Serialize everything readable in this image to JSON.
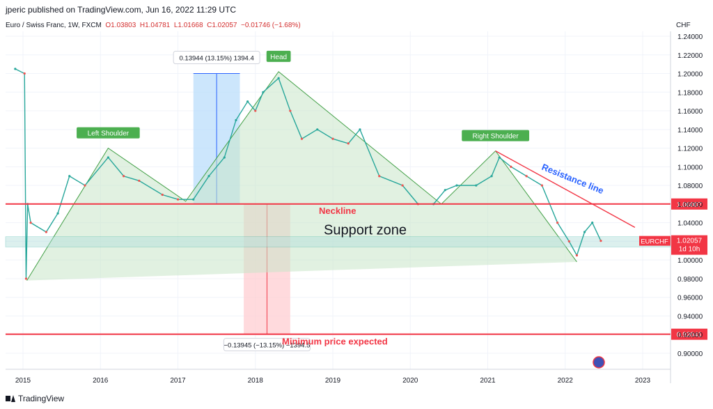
{
  "header": {
    "publish_line": "jperic published on TradingView.com, Jun 16, 2022 11:29 UTC"
  },
  "legend": {
    "symbol": "Euro / Swiss Franc, 1W, FXCM",
    "o": "O1.03803",
    "h": "H1.04781",
    "l": "L1.01668",
    "c": "C1.02057",
    "change": "−0.01746 (−1.68%)"
  },
  "footer": {
    "brand": "TradingView"
  },
  "colors": {
    "up": "#26a69a",
    "down": "#ef5350",
    "neckline": "#f23645",
    "pattern_fill": "#c8e6c9",
    "pattern_line": "#43a047",
    "resistance": "#f23645",
    "support_zone": "#b2dfdb",
    "measure_up": "#bbdefb",
    "measure_down": "#ffcdd2",
    "label_bg": "#4caf50"
  },
  "chart_data": {
    "type": "line",
    "instrument": "EURCHF",
    "timeframe": "1W",
    "y_unit": "CHF",
    "ylim": [
      0.88,
      1.25
    ],
    "xlim": [
      2014.9,
      2023.3
    ],
    "y_ticks": [
      "1.24000",
      "1.22000",
      "1.20000",
      "1.18000",
      "1.16000",
      "1.14000",
      "1.12000",
      "1.10000",
      "1.08000",
      "1.06000",
      "1.04000",
      "1.02000",
      "1.00000",
      "0.98000",
      "0.96000",
      "0.94000",
      "0.92000",
      "0.90000"
    ],
    "x_ticks": [
      "2015",
      "2016",
      "2017",
      "2018",
      "2019",
      "2020",
      "2021",
      "2022",
      "2023"
    ],
    "grid": true,
    "series": [
      {
        "x": [
          2014.9,
          2015.02,
          2015.04,
          2015.06,
          2015.1,
          2015.3,
          2015.45,
          2015.6,
          2015.8,
          2016.1,
          2016.3,
          2016.5,
          2016.8,
          2017.0,
          2017.2,
          2017.4,
          2017.6,
          2017.75,
          2017.9,
          2018.0,
          2018.1,
          2018.3,
          2018.45,
          2018.6,
          2018.8,
          2019.0,
          2019.2,
          2019.35,
          2019.6,
          2019.9,
          2020.1,
          2020.3,
          2020.45,
          2020.6,
          2020.85,
          2021.05,
          2021.15,
          2021.3,
          2021.5,
          2021.7,
          2021.9,
          2022.05,
          2022.15,
          2022.25,
          2022.35,
          2022.46
        ],
        "values": [
          1.205,
          1.2,
          0.98,
          1.06,
          1.04,
          1.03,
          1.05,
          1.09,
          1.08,
          1.11,
          1.09,
          1.085,
          1.07,
          1.065,
          1.065,
          1.09,
          1.11,
          1.15,
          1.17,
          1.16,
          1.18,
          1.195,
          1.16,
          1.13,
          1.14,
          1.13,
          1.125,
          1.14,
          1.09,
          1.08,
          1.06,
          1.06,
          1.075,
          1.08,
          1.08,
          1.09,
          1.11,
          1.1,
          1.09,
          1.08,
          1.04,
          1.02,
          1.005,
          1.03,
          1.04,
          1.02057
        ]
      }
    ],
    "horizontal_levels": [
      {
        "label": "Neckline",
        "value": 1.06007,
        "axis_tag": "1.06007"
      },
      {
        "label": "Minimum price expected",
        "value": 0.92041,
        "axis_tag": "0.92041"
      }
    ],
    "support_zone": {
      "label": "Support zone",
      "low": 1.014,
      "high": 1.025
    },
    "last_price": {
      "symbol": "EURCHF",
      "value": "1.02057",
      "countdown": "1d 10h"
    },
    "pattern": {
      "points": [
        [
          2015.05,
          0.978
        ],
        [
          2016.1,
          1.12
        ],
        [
          2017.1,
          1.063
        ],
        [
          2018.3,
          1.202
        ],
        [
          2020.4,
          1.06
        ],
        [
          2021.1,
          1.117
        ],
        [
          2022.15,
          0.998
        ]
      ],
      "labels": [
        {
          "text": "Left Shoulder",
          "x": 2016.1,
          "y": 1.12
        },
        {
          "text": "Head",
          "x": 2018.3,
          "y": 1.202
        },
        {
          "text": "Right Shoulder",
          "x": 2021.1,
          "y": 1.117
        }
      ]
    },
    "resistance_line": {
      "label": "Resistance line",
      "from": [
        2021.1,
        1.117
      ],
      "to": [
        2022.9,
        1.035
      ]
    },
    "measurements": [
      {
        "label": "0.13944 (13.15%) 1394.4",
        "x_from": 2017.2,
        "x_to": 2017.8,
        "y_from": 1.06,
        "y_to": 1.2,
        "direction": "up"
      },
      {
        "label": "−0.13945 (−13.15%) −1394.5",
        "x_from": 2017.85,
        "x_to": 2018.45,
        "y_from": 1.06,
        "y_to": 0.92041,
        "direction": "down"
      }
    ]
  }
}
